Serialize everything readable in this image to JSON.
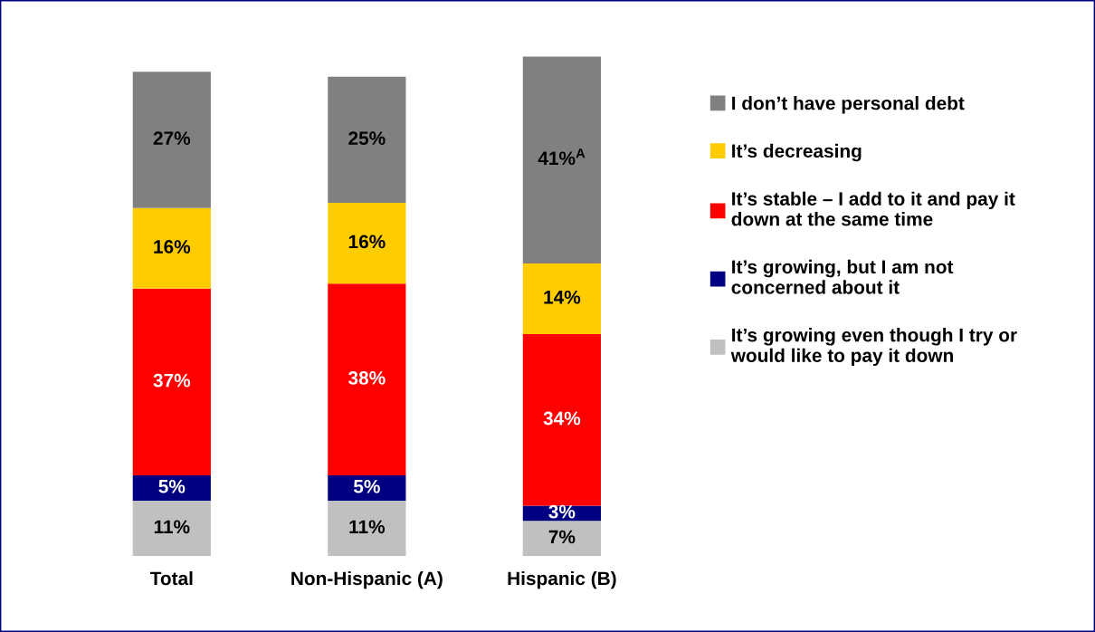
{
  "chart_data": {
    "type": "bar",
    "stacked": true,
    "legend": "right",
    "grid": false,
    "categories": [
      "Total",
      "Non-Hispanic (A)",
      "Hispanic (B)"
    ],
    "series": [
      {
        "name": "It’s growing even though I try or\nwould like to pay it down",
        "color": "#c0c0c0",
        "values": [
          11,
          11,
          7
        ],
        "value_labels": [
          "11%",
          "11%",
          "7%"
        ]
      },
      {
        "name": "It’s growing, but I am not\nconcerned about it",
        "color": "#000080",
        "values": [
          5,
          5,
          3
        ],
        "value_labels": [
          "5%",
          "5%",
          "3%"
        ]
      },
      {
        "name": "It’s stable – I add to it and pay it\ndown at the same time",
        "color": "#ff0000",
        "values": [
          37,
          38,
          34
        ],
        "value_labels": [
          "37%",
          "38%",
          "34%"
        ]
      },
      {
        "name": "It’s decreasing",
        "color": "#ffcc00",
        "values": [
          16,
          16,
          14
        ],
        "value_labels": [
          "16%",
          "16%",
          "14%"
        ]
      },
      {
        "name": "I don’t have personal debt",
        "color": "#808080",
        "values": [
          27,
          25,
          41
        ],
        "value_labels": [
          "27%",
          "25%",
          "41%$^{A}$"
        ]
      }
    ]
  }
}
